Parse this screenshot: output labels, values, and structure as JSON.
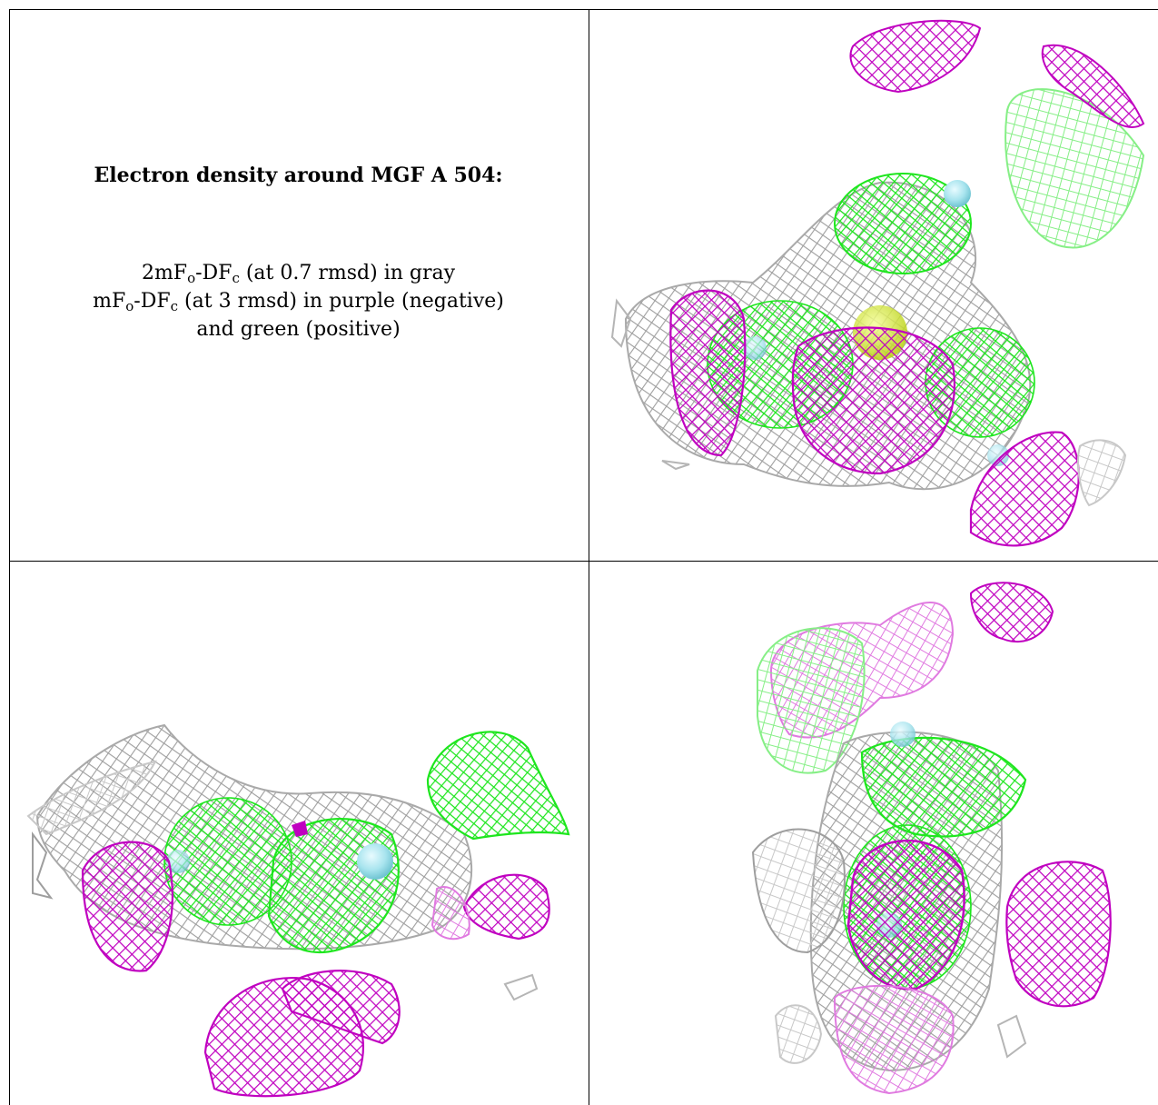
{
  "caption": {
    "title": "Electron density around MGF A 504:",
    "legend": [
      {
        "main": "2mF",
        "sub1": "o",
        "mid": "-DF",
        "sub2": "c",
        "rest": " (at 0.7 rmsd) in gray"
      },
      {
        "main": "mF",
        "sub1": "o",
        "mid": "-DF",
        "sub2": "c",
        "rest": " (at 3 rmsd) in purple (negative)"
      },
      {
        "main": "",
        "sub1": "",
        "mid": "",
        "sub2": "",
        "rest": "and green (positive)"
      }
    ]
  },
  "colors": {
    "gray_mesh": "#a9a9a9",
    "negative_mesh": "#c000c0",
    "positive_mesh": "#22ee22",
    "atom_sphere": "#a8e4ee",
    "center_atom": "#d8ee22"
  },
  "panels": [
    {
      "name": "view-1"
    },
    {
      "name": "view-2"
    },
    {
      "name": "view-3"
    }
  ]
}
